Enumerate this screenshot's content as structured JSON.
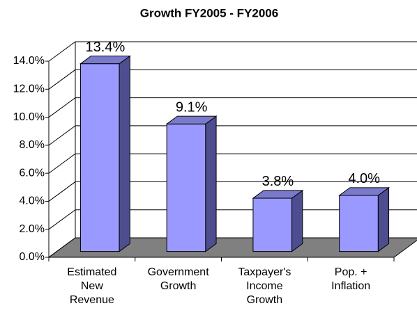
{
  "chart_data": {
    "type": "bar3d",
    "title": "Growth FY2005 - FY2006",
    "categories": [
      "Estimated\nNew\nRevenue",
      "Government\nGrowth",
      "Taxpayer's\nIncome\nGrowth",
      "Pop. +\nInflation"
    ],
    "values": [
      13.4,
      9.1,
      3.8,
      4.0
    ],
    "value_labels": [
      "13.4%",
      "9.1%",
      "3.8%",
      "4.0%"
    ],
    "ylim": [
      0,
      14
    ],
    "yticks": [
      {
        "value": 0,
        "label": "0.0%"
      },
      {
        "value": 2,
        "label": "2.0%"
      },
      {
        "value": 4,
        "label": "4.0%"
      },
      {
        "value": 6,
        "label": "6.0%"
      },
      {
        "value": 8,
        "label": "8.0%"
      },
      {
        "value": 10,
        "label": "10.0%"
      },
      {
        "value": 12,
        "label": "12.0%"
      },
      {
        "value": 14,
        "label": "14.0%"
      }
    ],
    "color": "#9999ff",
    "grid": true
  }
}
